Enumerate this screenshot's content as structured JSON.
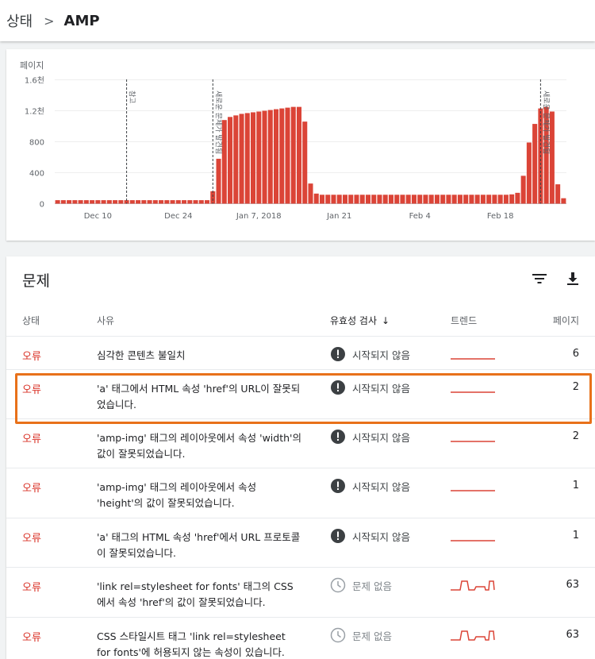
{
  "breadcrumb": {
    "parent": "상태",
    "separator": ">",
    "current": "AMP"
  },
  "chart_data": {
    "type": "bar",
    "ylabel": "페이지",
    "ylim": [
      0,
      1600
    ],
    "y_ticks": [
      {
        "value": 0,
        "label": "0"
      },
      {
        "value": 400,
        "label": "400"
      },
      {
        "value": 800,
        "label": "800"
      },
      {
        "value": 1200,
        "label": "1.2천"
      },
      {
        "value": 1600,
        "label": "1.6천"
      }
    ],
    "x_ticks": [
      {
        "index": 7,
        "label": "Dec 10"
      },
      {
        "index": 21,
        "label": "Dec 24"
      },
      {
        "index": 35,
        "label": "Jan 7, 2018"
      },
      {
        "index": 49,
        "label": "Jan 21"
      },
      {
        "index": 63,
        "label": "Feb 4"
      },
      {
        "index": 77,
        "label": "Feb 18"
      }
    ],
    "values": [
      45,
      45,
      45,
      45,
      45,
      45,
      45,
      45,
      45,
      45,
      45,
      45,
      45,
      45,
      45,
      45,
      45,
      45,
      45,
      45,
      45,
      45,
      45,
      45,
      45,
      45,
      45,
      160,
      580,
      1080,
      1120,
      1140,
      1160,
      1170,
      1180,
      1190,
      1200,
      1210,
      1220,
      1230,
      1240,
      1250,
      1250,
      1060,
      260,
      130,
      115,
      115,
      115,
      115,
      115,
      115,
      115,
      115,
      115,
      115,
      115,
      115,
      115,
      115,
      115,
      115,
      115,
      115,
      115,
      115,
      115,
      115,
      115,
      115,
      115,
      115,
      115,
      115,
      115,
      115,
      115,
      115,
      115,
      120,
      140,
      360,
      790,
      1030,
      1230,
      1250,
      1190,
      250,
      70
    ],
    "annotations": [
      {
        "index": 12.5,
        "label": "참고"
      },
      {
        "index": 27.5,
        "label": "새로운 문제가 발견됨"
      },
      {
        "index": 84.5,
        "label": "새로운 문제가 발견됨"
      }
    ],
    "color": "#db4437"
  },
  "issues": {
    "title": "문제",
    "columns": {
      "status": "상태",
      "reason": "사유",
      "validation": "유효성 검사",
      "trend": "트렌드",
      "pages": "페이지"
    },
    "rows": [
      {
        "status": "오류",
        "reason": "심각한 콘텐츠 불일치",
        "validation": "시작되지 않음",
        "validation_kind": "alert",
        "trend": "flat",
        "pages": "6"
      },
      {
        "status": "오류",
        "reason": "'a' 태그에서 HTML 속성 'href'의 URL이 잘못되었습니다.",
        "validation": "시작되지 않음",
        "validation_kind": "alert",
        "trend": "flat",
        "pages": "2"
      },
      {
        "status": "오류",
        "reason": "'amp-img' 태그의 레이아웃에서 속성 'width'의 값이 잘못되었습니다.",
        "validation": "시작되지 않음",
        "validation_kind": "alert",
        "trend": "flat",
        "pages": "2"
      },
      {
        "status": "오류",
        "reason": "'amp-img' 태그의 레이아웃에서 속성 'height'의 값이 잘못되었습니다.",
        "validation": "시작되지 않음",
        "validation_kind": "alert",
        "trend": "flat",
        "pages": "1"
      },
      {
        "status": "오류",
        "reason": "'a' 태그의 HTML 속성 'href'에서 URL 프로토콜이 잘못되었습니다.",
        "validation": "시작되지 않음",
        "validation_kind": "alert",
        "trend": "flat",
        "pages": "1"
      },
      {
        "status": "오류",
        "reason": "'link rel=stylesheet for fonts' 태그의 CSS에서 속성 'href'의 값이 잘못되었습니다.",
        "validation": "문제 없음",
        "validation_kind": "clock",
        "trend": "step",
        "pages": "63"
      },
      {
        "status": "오류",
        "reason": "CSS 스타일시트 태그 'link rel=stylesheet for fonts'에 허용되지 않는 속성이 있습니다.",
        "validation": "문제 없음",
        "validation_kind": "clock",
        "trend": "step",
        "pages": "63"
      }
    ]
  },
  "colors": {
    "error": "#d93025",
    "bar": "#db4437",
    "highlight": "#e8711a"
  }
}
